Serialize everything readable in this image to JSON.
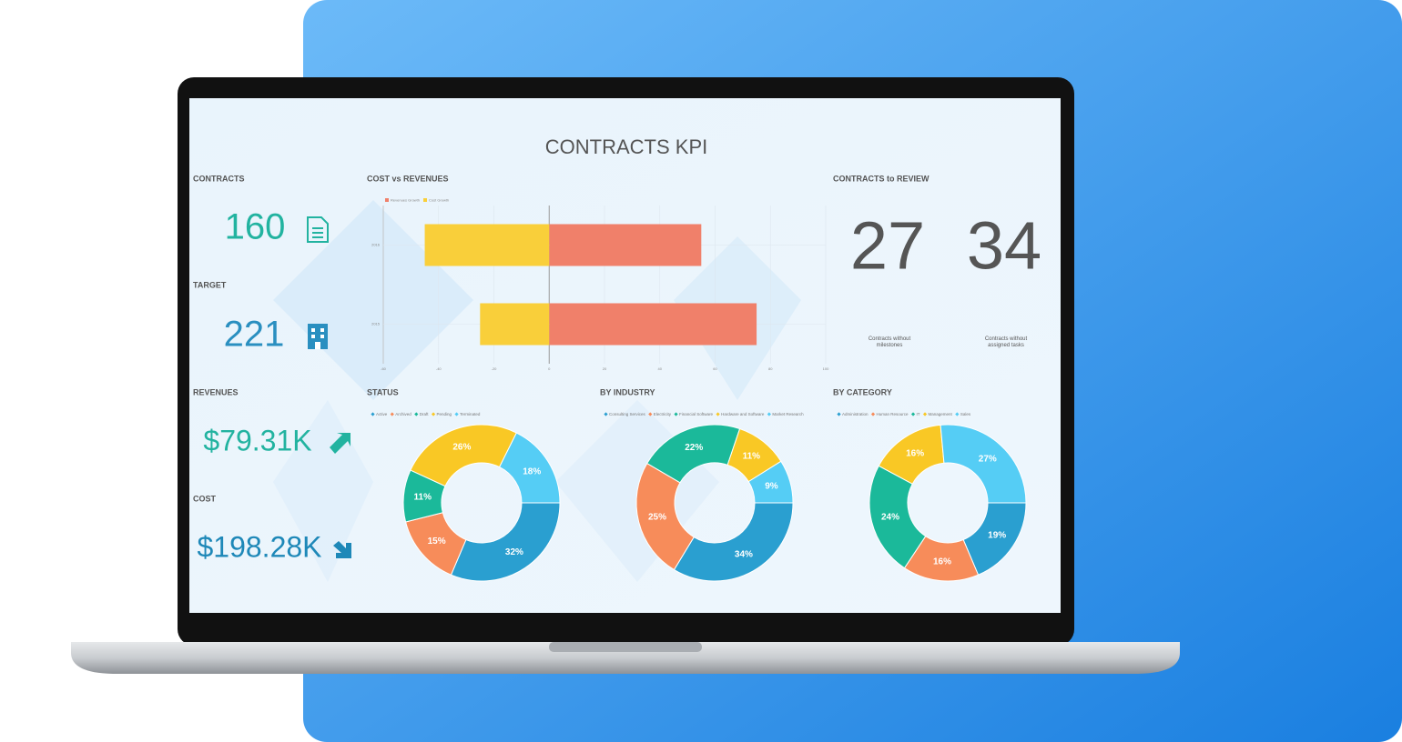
{
  "header": {
    "title": "CONTRACTS KPI"
  },
  "kpis": [
    {
      "label": "CONTRACTS",
      "value": 160
    },
    {
      "label": "TARGET",
      "value": 221
    },
    {
      "label": "REVENUES",
      "value": "$79.31K"
    },
    {
      "label": "COST",
      "value": "$198.28K"
    }
  ],
  "review": {
    "title": "CONTRACTS to REVIEW",
    "items": [
      {
        "value": 27,
        "caption": "Contracts without milestones"
      },
      {
        "value": 34,
        "caption": "Contracts without assigned tasks"
      }
    ]
  },
  "chart_data": [
    {
      "type": "bar",
      "orientation": "horizontal",
      "title": "COST vs REVENUES",
      "categories": [
        "2016",
        "2015"
      ],
      "series": [
        {
          "name": "Revenues Growth",
          "color": "#f0806a",
          "values": [
            55,
            75
          ]
        },
        {
          "name": "Cost Growth",
          "color": "#f9cf3a",
          "values": [
            -45,
            -25
          ]
        }
      ],
      "xlim": [
        -60,
        100
      ],
      "xticks": [
        -60,
        -40,
        -20,
        0,
        20,
        40,
        60,
        80,
        100
      ],
      "grid": true
    },
    {
      "type": "pie",
      "donut": true,
      "title": "STATUS",
      "categories": [
        "Active",
        "Archived",
        "Draft",
        "Pending",
        "Terminated"
      ],
      "values": [
        32,
        15,
        11,
        26,
        18
      ],
      "value_labels": [
        "32%",
        "15%",
        "11%",
        "26%",
        "18%"
      ],
      "colors": [
        "#2a9fd0",
        "#f78c5a",
        "#1bb99a",
        "#f9c825",
        "#55cdf5"
      ]
    },
    {
      "type": "pie",
      "donut": true,
      "title": "BY INDUSTRY",
      "categories": [
        "Consulting Services",
        "Electricity",
        "Financial Software",
        "Hardware and Software",
        "Market Research"
      ],
      "values": [
        34,
        25,
        22,
        11,
        9
      ],
      "value_labels": [
        "34%",
        "25%",
        "22%",
        "11%",
        "9%"
      ],
      "colors": [
        "#2a9fd0",
        "#f78c5a",
        "#1bb99a",
        "#f9c825",
        "#55cdf5"
      ]
    },
    {
      "type": "pie",
      "donut": true,
      "title": "BY CATEGORY",
      "categories": [
        "Administration",
        "Human Resource",
        "IT",
        "Management",
        "Sales"
      ],
      "values": [
        19,
        16,
        24,
        16,
        27
      ],
      "value_labels": [
        "19%",
        "16%",
        "24%",
        "16%",
        "27%"
      ],
      "colors": [
        "#2a9fd0",
        "#f78c5a",
        "#1bb99a",
        "#f9c825",
        "#55cdf5"
      ]
    }
  ]
}
